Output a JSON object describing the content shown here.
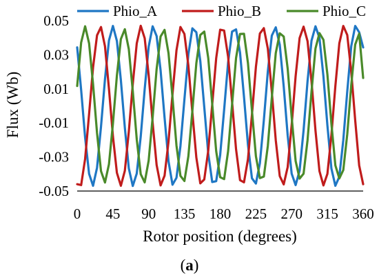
{
  "caption": {
    "open": "(",
    "letter": "a",
    "close": ")"
  },
  "chart_data": {
    "type": "line",
    "title": "",
    "xlabel": "Rotor position (degrees)",
    "ylabel": "Flux (Wb)",
    "xlim": [
      0,
      360
    ],
    "ylim": [
      -0.05,
      0.05
    ],
    "xticks": [
      0,
      45,
      90,
      135,
      180,
      225,
      270,
      315,
      360
    ],
    "yticks": [
      -0.05,
      -0.03,
      -0.01,
      0.01,
      0.03,
      0.05
    ],
    "xtick_labels": [
      "0",
      "45",
      "90",
      "135",
      "180",
      "225",
      "270",
      "315",
      "360"
    ],
    "ytick_labels": [
      "-0.05",
      "-0.03",
      "-0.01",
      "0.01",
      "0.03",
      "0.05"
    ],
    "grid": false,
    "legend_position": "top",
    "x": [
      0,
      5,
      10,
      15,
      20,
      25,
      30,
      35,
      40,
      45,
      50,
      55,
      60,
      65,
      70,
      75,
      80,
      85,
      90,
      95,
      100,
      105,
      110,
      115,
      120,
      125,
      130,
      135,
      140,
      145,
      150,
      155,
      160,
      165,
      170,
      175,
      180,
      185,
      190,
      195,
      200,
      205,
      210,
      215,
      220,
      225,
      230,
      235,
      240,
      245,
      250,
      255,
      260,
      265,
      270,
      275,
      280,
      285,
      290,
      295,
      300,
      305,
      310,
      315,
      320,
      325,
      330,
      335,
      340,
      345,
      350,
      355,
      360
    ],
    "series": [
      {
        "name": "Phio_A",
        "color": "#1f77c4",
        "values": [
          0.0343,
          0.0093,
          -0.0186,
          -0.0399,
          -0.0469,
          -0.0363,
          -0.0122,
          0.0157,
          0.0384,
          0.0469,
          0.0381,
          0.0151,
          -0.0128,
          -0.0367,
          -0.047,
          -0.0397,
          -0.018,
          0.0099,
          0.0347,
          0.0467,
          0.041,
          0.0209,
          -0.0069,
          -0.0326,
          -0.0463,
          -0.0422,
          -0.0236,
          0.0038,
          0.0303,
          0.0455,
          0.0432,
          0.0263,
          -0.0008,
          -0.028,
          -0.0447,
          -0.0442,
          -0.0289,
          -0.0023,
          0.0255,
          0.0436,
          0.0449,
          0.0313,
          0.0053,
          -0.0229,
          -0.0425,
          -0.0456,
          -0.0337,
          -0.0084,
          0.0202,
          0.0412,
          0.0461,
          0.0359,
          0.0114,
          -0.0174,
          -0.0398,
          -0.0465,
          -0.038,
          -0.0144,
          0.0145,
          0.0383,
          0.0467,
          0.0399,
          0.0173,
          -0.0115,
          -0.0367,
          -0.0469,
          -0.0416,
          -0.0201,
          0.0085,
          0.035,
          0.0469,
          0.0432,
          0.0343
        ]
      },
      {
        "name": "Phio_B",
        "color": "#c01c1c",
        "values": [
          -0.046,
          -0.0465,
          -0.0311,
          -0.0048,
          0.0226,
          0.0414,
          0.0463,
          0.035,
          0.0101,
          -0.0178,
          -0.0393,
          -0.0469,
          -0.0381,
          -0.0151,
          0.0128,
          0.0367,
          0.047,
          0.0397,
          0.018,
          -0.0099,
          -0.0347,
          -0.0467,
          -0.041,
          -0.0209,
          0.0069,
          0.0326,
          0.0463,
          0.0422,
          0.0236,
          -0.0038,
          -0.0303,
          -0.0455,
          -0.0432,
          -0.0263,
          0.0008,
          0.028,
          0.0447,
          0.0442,
          0.0289,
          0.0023,
          -0.0255,
          -0.0436,
          -0.0449,
          -0.0313,
          -0.0053,
          0.0229,
          0.0425,
          0.0456,
          0.0337,
          0.0084,
          -0.0202,
          -0.0412,
          -0.0461,
          -0.0359,
          -0.0114,
          0.0174,
          0.0398,
          0.0465,
          0.038,
          0.0144,
          -0.0145,
          -0.0383,
          -0.0467,
          -0.0399,
          -0.0173,
          0.0115,
          0.0367,
          0.0469,
          0.0416,
          0.0201,
          -0.0085,
          -0.035,
          -0.046
        ]
      },
      {
        "name": "Phio_C",
        "color": "#4a8a2a",
        "values": [
          0.0117,
          0.0372,
          0.0467,
          0.0367,
          0.0127,
          -0.016,
          -0.0383,
          -0.045,
          -0.0343,
          -0.0104,
          0.0178,
          0.0392,
          0.045,
          0.0333,
          0.0087,
          -0.0197,
          -0.0401,
          -0.0449,
          -0.0321,
          -0.0067,
          0.0216,
          0.0407,
          0.0446,
          0.0309,
          0.0049,
          -0.0233,
          -0.0411,
          -0.0441,
          -0.0295,
          -0.003,
          0.025,
          0.0416,
          0.0436,
          0.0281,
          0.0011,
          -0.0266,
          -0.0419,
          -0.043,
          -0.0266,
          0.0008,
          0.0281,
          0.0422,
          0.0423,
          0.0251,
          -0.0027,
          -0.0296,
          -0.0424,
          -0.0415,
          -0.0235,
          0.0046,
          0.031,
          0.0426,
          0.0407,
          0.0218,
          -0.0065,
          -0.0324,
          -0.0427,
          -0.0398,
          -0.0201,
          0.0084,
          0.0337,
          0.0427,
          0.0388,
          0.0184,
          -0.0103,
          -0.0349,
          -0.0426,
          -0.0377,
          -0.0166,
          0.0121,
          0.036,
          0.0424,
          0.0164
        ]
      }
    ]
  }
}
